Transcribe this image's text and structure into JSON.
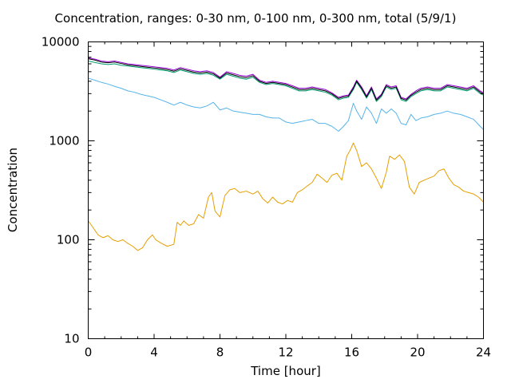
{
  "chart_data": {
    "type": "line",
    "title": "Concentration, ranges: 0-30 nm, 0-100 nm, 0-300 nm, total (5/9/1)",
    "xlabel": "Time [hour]",
    "ylabel": "Concentration",
    "xlim": [
      0,
      24
    ],
    "ylim": [
      10,
      10000
    ],
    "yscale": "log",
    "xticks": [
      0,
      4,
      8,
      12,
      16,
      20,
      24
    ],
    "yticks": [
      10,
      100,
      1000,
      10000
    ],
    "grid": false,
    "legend": "none",
    "series": [
      {
        "color": "#e69f00",
        "x": [
          0,
          0.2,
          0.4,
          0.6,
          0.9,
          1.2,
          1.5,
          1.8,
          2.1,
          2.4,
          2.7,
          3.0,
          3.3,
          3.6,
          3.9,
          4.1,
          4.4,
          4.8,
          5.2,
          5.4,
          5.6,
          5.8,
          6.1,
          6.4,
          6.7,
          7.0,
          7.3,
          7.5,
          7.7,
          8.0,
          8.3,
          8.6,
          8.9,
          9.2,
          9.6,
          10.0,
          10.3,
          10.6,
          10.9,
          11.2,
          11.5,
          11.8,
          12.1,
          12.4,
          12.7,
          13.0,
          13.3,
          13.6,
          13.9,
          14.2,
          14.5,
          14.8,
          15.1,
          15.4,
          15.7,
          15.9,
          16.1,
          16.3,
          16.6,
          16.9,
          17.2,
          17.5,
          17.8,
          18.1,
          18.3,
          18.6,
          18.9,
          19.2,
          19.5,
          19.8,
          20.1,
          20.4,
          20.7,
          21.0,
          21.3,
          21.6,
          21.9,
          22.2,
          22.5,
          22.8,
          23.1,
          23.4,
          23.7,
          24.0
        ],
        "values": [
          155,
          140,
          125,
          112,
          105,
          110,
          100,
          96,
          100,
          92,
          86,
          78,
          83,
          100,
          112,
          100,
          93,
          86,
          90,
          150,
          140,
          155,
          140,
          145,
          180,
          165,
          270,
          300,
          195,
          170,
          280,
          320,
          330,
          300,
          310,
          290,
          310,
          260,
          235,
          270,
          240,
          230,
          250,
          240,
          300,
          320,
          350,
          380,
          460,
          420,
          380,
          450,
          470,
          400,
          700,
          800,
          950,
          800,
          550,
          600,
          520,
          420,
          330,
          480,
          700,
          650,
          720,
          620,
          340,
          290,
          380,
          400,
          420,
          440,
          500,
          520,
          420,
          360,
          340,
          310,
          300,
          290,
          270,
          240
        ]
      },
      {
        "color": "#56b4e9",
        "x": [
          0,
          0.4,
          0.8,
          1.2,
          1.6,
          2.0,
          2.4,
          2.8,
          3.2,
          3.6,
          4.0,
          4.4,
          4.8,
          5.2,
          5.6,
          6.0,
          6.4,
          6.8,
          7.2,
          7.6,
          8.0,
          8.4,
          8.8,
          9.2,
          9.6,
          10.0,
          10.4,
          10.8,
          11.2,
          11.6,
          12.0,
          12.4,
          12.8,
          13.2,
          13.6,
          14.0,
          14.4,
          14.8,
          15.2,
          15.5,
          15.8,
          16.1,
          16.3,
          16.6,
          16.9,
          17.2,
          17.5,
          17.8,
          18.1,
          18.4,
          18.7,
          19.0,
          19.3,
          19.6,
          19.9,
          20.2,
          20.6,
          21.0,
          21.4,
          21.8,
          22.2,
          22.6,
          23.0,
          23.4,
          23.8,
          24.0
        ],
        "values": [
          4300,
          4100,
          3900,
          3750,
          3550,
          3400,
          3200,
          3100,
          2950,
          2850,
          2750,
          2600,
          2450,
          2300,
          2450,
          2300,
          2200,
          2150,
          2250,
          2450,
          2050,
          2150,
          2000,
          1950,
          1900,
          1850,
          1850,
          1750,
          1700,
          1700,
          1550,
          1500,
          1550,
          1600,
          1650,
          1500,
          1500,
          1400,
          1250,
          1400,
          1600,
          2400,
          2000,
          1650,
          2200,
          1900,
          1500,
          2100,
          1900,
          2100,
          1900,
          1500,
          1450,
          1850,
          1600,
          1700,
          1750,
          1850,
          1900,
          2000,
          1900,
          1850,
          1750,
          1650,
          1400,
          1300
        ]
      },
      {
        "color": "#009e73",
        "x": [
          0,
          0.4,
          0.8,
          1.2,
          1.6,
          2.0,
          2.4,
          2.8,
          3.2,
          3.6,
          4.0,
          4.4,
          4.8,
          5.2,
          5.6,
          6.0,
          6.4,
          6.8,
          7.2,
          7.6,
          8.0,
          8.4,
          8.8,
          9.2,
          9.6,
          10.0,
          10.4,
          10.8,
          11.2,
          11.6,
          12.0,
          12.4,
          12.8,
          13.2,
          13.6,
          14.0,
          14.4,
          14.8,
          15.2,
          15.5,
          15.8,
          16.1,
          16.3,
          16.6,
          16.9,
          17.2,
          17.5,
          17.8,
          18.1,
          18.4,
          18.7,
          19.0,
          19.3,
          19.6,
          19.9,
          20.2,
          20.6,
          21.0,
          21.4,
          21.8,
          22.2,
          22.6,
          23.0,
          23.4,
          23.8,
          24.0
        ],
        "values": [
          6400,
          6200,
          6000,
          5900,
          6000,
          5800,
          5700,
          5600,
          5500,
          5400,
          5300,
          5200,
          5100,
          4900,
          5200,
          5000,
          4800,
          4700,
          4800,
          4600,
          4200,
          4700,
          4500,
          4300,
          4200,
          4400,
          3900,
          3700,
          3800,
          3700,
          3600,
          3400,
          3200,
          3200,
          3300,
          3200,
          3100,
          2900,
          2600,
          2700,
          2750,
          3300,
          3900,
          3300,
          2700,
          3300,
          2500,
          2800,
          3500,
          3300,
          3400,
          2600,
          2500,
          2800,
          3000,
          3200,
          3300,
          3200,
          3200,
          3500,
          3400,
          3300,
          3200,
          3400,
          3000,
          2900
        ]
      },
      {
        "color": "#9400d3",
        "x": [
          0,
          0.4,
          0.8,
          1.2,
          1.6,
          2.0,
          2.4,
          2.8,
          3.2,
          3.6,
          4.0,
          4.4,
          4.8,
          5.2,
          5.6,
          6.0,
          6.4,
          6.8,
          7.2,
          7.6,
          8.0,
          8.4,
          8.8,
          9.2,
          9.6,
          10.0,
          10.4,
          10.8,
          11.2,
          11.6,
          12.0,
          12.4,
          12.8,
          13.2,
          13.6,
          14.0,
          14.4,
          14.8,
          15.2,
          15.5,
          15.8,
          16.1,
          16.3,
          16.6,
          16.9,
          17.2,
          17.5,
          17.8,
          18.1,
          18.4,
          18.7,
          19.0,
          19.3,
          19.6,
          19.9,
          20.2,
          20.6,
          21.0,
          21.4,
          21.8,
          22.2,
          22.6,
          23.0,
          23.4,
          23.8,
          24.0
        ],
        "values": [
          6900,
          6700,
          6400,
          6300,
          6400,
          6200,
          6000,
          5900,
          5800,
          5700,
          5600,
          5500,
          5400,
          5200,
          5500,
          5300,
          5100,
          5000,
          5100,
          4900,
          4400,
          5000,
          4800,
          4600,
          4500,
          4700,
          4100,
          3900,
          4000,
          3900,
          3800,
          3600,
          3400,
          3400,
          3500,
          3400,
          3300,
          3050,
          2750,
          2850,
          2900,
          3500,
          4100,
          3500,
          2850,
          3500,
          2650,
          2950,
          3700,
          3500,
          3600,
          2750,
          2650,
          2950,
          3200,
          3400,
          3500,
          3400,
          3400,
          3700,
          3600,
          3500,
          3400,
          3600,
          3200,
          3050
        ]
      },
      {
        "color": "#000000",
        "x": [
          0,
          0.4,
          0.8,
          1.2,
          1.6,
          2.0,
          2.4,
          2.8,
          3.2,
          3.6,
          4.0,
          4.4,
          4.8,
          5.2,
          5.6,
          6.0,
          6.4,
          6.8,
          7.2,
          7.6,
          8.0,
          8.4,
          8.8,
          9.2,
          9.6,
          10.0,
          10.4,
          10.8,
          11.2,
          11.6,
          12.0,
          12.4,
          12.8,
          13.2,
          13.6,
          14.0,
          14.4,
          14.8,
          15.2,
          15.5,
          15.8,
          16.1,
          16.3,
          16.6,
          16.9,
          17.2,
          17.5,
          17.8,
          18.1,
          18.4,
          18.7,
          19.0,
          19.3,
          19.6,
          19.9,
          20.2,
          20.6,
          21.0,
          21.4,
          21.8,
          22.2,
          22.6,
          23.0,
          23.4,
          23.8,
          24.0
        ],
        "values": [
          6750,
          6550,
          6250,
          6150,
          6250,
          6050,
          5850,
          5750,
          5650,
          5550,
          5450,
          5350,
          5250,
          5050,
          5350,
          5150,
          4950,
          4850,
          4950,
          4750,
          4300,
          4850,
          4650,
          4450,
          4350,
          4550,
          4000,
          3800,
          3900,
          3800,
          3700,
          3500,
          3300,
          3300,
          3400,
          3300,
          3200,
          2980,
          2680,
          2780,
          2830,
          3400,
          4000,
          3400,
          2780,
          3400,
          2580,
          2880,
          3600,
          3400,
          3500,
          2680,
          2580,
          2880,
          3100,
          3300,
          3400,
          3300,
          3300,
          3600,
          3500,
          3400,
          3300,
          3500,
          3100,
          2980
        ]
      }
    ]
  }
}
